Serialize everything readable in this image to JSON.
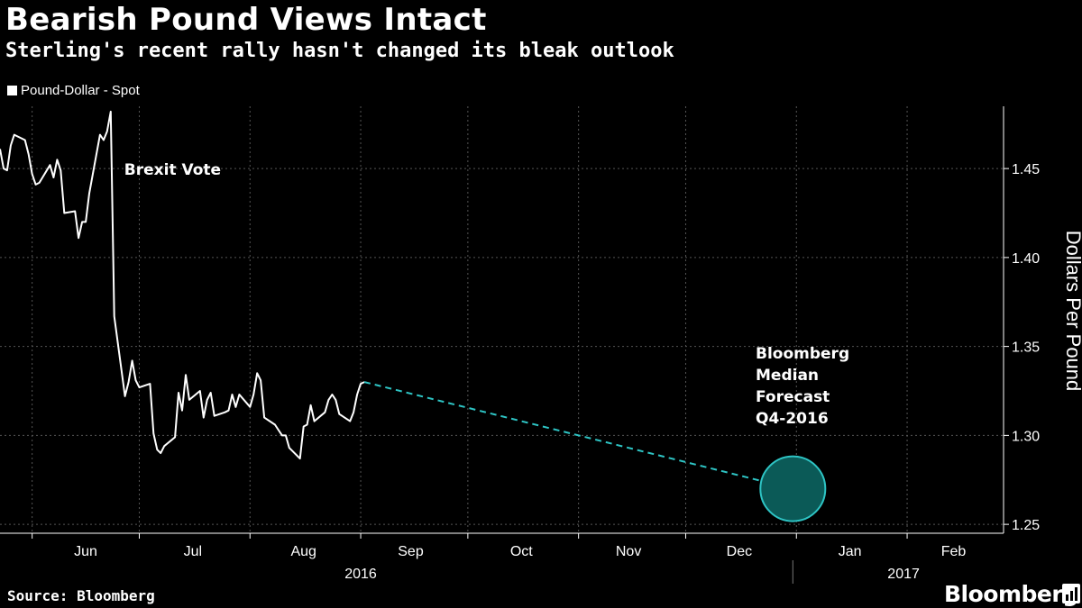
{
  "header": {
    "title": "Bearish Pound Views Intact",
    "subtitle": "Sterling's recent rally hasn't changed its bleak outlook"
  },
  "footer": {
    "source": "Source: Bloomberg",
    "brand": "Bloomberg"
  },
  "colors": {
    "background": "#000000",
    "line": "#ffffff",
    "forecast": "#2ec4c4",
    "forecast_fill": "#0b5a57",
    "grid": "#555555"
  },
  "chart_data": {
    "type": "line",
    "title": "Bearish Pound Views Intact",
    "subtitle": "Sterling's recent rally hasn't changed its bleak outlook",
    "ylabel": "Dollars Per Pound",
    "ylim": [
      1.245,
      1.485
    ],
    "yticks": [
      1.25,
      1.3,
      1.35,
      1.4,
      1.45
    ],
    "xlim": [
      "2016-05-23",
      "2017-02-28"
    ],
    "month_ticks": [
      {
        "label": "Jun",
        "date": "2016-06-16"
      },
      {
        "label": "Jul",
        "date": "2016-07-16"
      },
      {
        "label": "Aug",
        "date": "2016-08-16"
      },
      {
        "label": "Sep",
        "date": "2016-09-15"
      },
      {
        "label": "Oct",
        "date": "2016-10-16"
      },
      {
        "label": "Nov",
        "date": "2016-11-15"
      },
      {
        "label": "Dec",
        "date": "2016-12-16"
      },
      {
        "label": "Jan",
        "date": "2017-01-16"
      },
      {
        "label": "Feb",
        "date": "2017-02-14"
      }
    ],
    "grid_dates": [
      "2016-06-01",
      "2016-07-01",
      "2016-08-01",
      "2016-09-01",
      "2016-10-01",
      "2016-11-01",
      "2016-12-01",
      "2017-01-01",
      "2017-02-01"
    ],
    "year_labels": [
      {
        "label": "2016",
        "date": "2016-09-01"
      },
      {
        "label": "2017",
        "date": "2017-01-31"
      }
    ],
    "year_separator_date": "2016-12-31",
    "legend": "Pound-Dollar - Spot",
    "series": [
      {
        "name": "Pound-Dollar - Spot",
        "x": [
          "2016-05-23",
          "2016-05-24",
          "2016-05-25",
          "2016-05-26",
          "2016-05-27",
          "2016-05-30",
          "2016-05-31",
          "2016-06-01",
          "2016-06-02",
          "2016-06-03",
          "2016-06-06",
          "2016-06-07",
          "2016-06-08",
          "2016-06-09",
          "2016-06-10",
          "2016-06-13",
          "2016-06-14",
          "2016-06-15",
          "2016-06-16",
          "2016-06-17",
          "2016-06-20",
          "2016-06-21",
          "2016-06-22",
          "2016-06-23",
          "2016-06-24",
          "2016-06-27",
          "2016-06-28",
          "2016-06-29",
          "2016-06-30",
          "2016-07-01",
          "2016-07-04",
          "2016-07-05",
          "2016-07-06",
          "2016-07-07",
          "2016-07-08",
          "2016-07-11",
          "2016-07-12",
          "2016-07-13",
          "2016-07-14",
          "2016-07-15",
          "2016-07-18",
          "2016-07-19",
          "2016-07-20",
          "2016-07-21",
          "2016-07-22",
          "2016-07-25",
          "2016-07-26",
          "2016-07-27",
          "2016-07-28",
          "2016-07-29",
          "2016-08-01",
          "2016-08-02",
          "2016-08-03",
          "2016-08-04",
          "2016-08-05",
          "2016-08-08",
          "2016-08-09",
          "2016-08-10",
          "2016-08-11",
          "2016-08-12",
          "2016-08-15",
          "2016-08-16",
          "2016-08-17",
          "2016-08-18",
          "2016-08-19",
          "2016-08-22",
          "2016-08-23",
          "2016-08-24",
          "2016-08-25",
          "2016-08-26",
          "2016-08-29",
          "2016-08-30",
          "2016-08-31",
          "2016-09-01",
          "2016-09-02"
        ],
        "values": [
          1.461,
          1.45,
          1.449,
          1.463,
          1.469,
          1.466,
          1.458,
          1.447,
          1.441,
          1.442,
          1.452,
          1.445,
          1.455,
          1.449,
          1.425,
          1.426,
          1.411,
          1.42,
          1.42,
          1.436,
          1.469,
          1.466,
          1.471,
          1.482,
          1.367,
          1.322,
          1.33,
          1.342,
          1.331,
          1.327,
          1.329,
          1.301,
          1.292,
          1.29,
          1.294,
          1.299,
          1.324,
          1.314,
          1.334,
          1.32,
          1.325,
          1.31,
          1.32,
          1.324,
          1.311,
          1.313,
          1.314,
          1.323,
          1.316,
          1.323,
          1.316,
          1.323,
          1.335,
          1.331,
          1.31,
          1.306,
          1.303,
          1.3,
          1.3,
          1.293,
          1.287,
          1.305,
          1.306,
          1.317,
          1.308,
          1.313,
          1.32,
          1.323,
          1.32,
          1.312,
          1.308,
          1.313,
          1.323,
          1.329,
          1.33
        ]
      }
    ],
    "forecast": {
      "name": "Bloomberg Median Forecast Q4-2016",
      "from": {
        "date": "2016-09-02",
        "value": 1.33
      },
      "to": {
        "date": "2016-12-31",
        "value": 1.27
      },
      "annotation": [
        "Bloomberg",
        "Median",
        "Forecast",
        "Q4-2016"
      ]
    },
    "annotations": [
      {
        "text": "Brexit Vote",
        "date": "2016-06-23"
      }
    ]
  }
}
